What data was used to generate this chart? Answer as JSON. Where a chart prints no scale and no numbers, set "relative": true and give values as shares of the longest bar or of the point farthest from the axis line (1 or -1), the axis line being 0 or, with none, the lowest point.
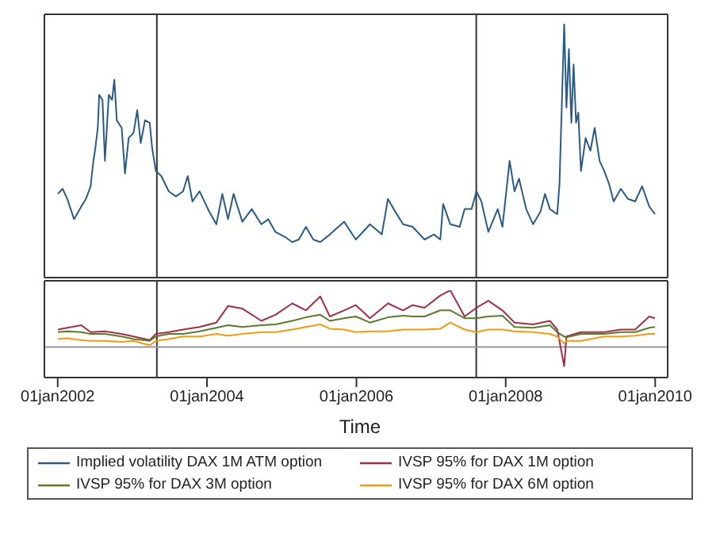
{
  "chart_data": [
    {
      "type": "line",
      "relative": true,
      "tick_labels": false,
      "legend": "bottom",
      "line_style": "solid",
      "marker": "none",
      "xlim": [
        "2001-10-28",
        "2010-03-03"
      ],
      "x": [
        "2002-01-02",
        "2002-01-25",
        "2002-02-17",
        "2002-03-22",
        "2002-04-26",
        "2002-05-19",
        "2002-06-11",
        "2002-06-23",
        "2002-07-04",
        "2002-07-16",
        "2002-07-23",
        "2002-08-08",
        "2002-08-20",
        "2002-09-08",
        "2002-09-24",
        "2002-10-05",
        "2002-10-17",
        "2002-11-10",
        "2002-11-26",
        "2002-12-14",
        "2003-01-07",
        "2003-01-25",
        "2003-02-11",
        "2003-03-04",
        "2003-03-27",
        "2003-04-08",
        "2003-04-26",
        "2003-05-23",
        "2003-06-28",
        "2003-08-02",
        "2003-09-06",
        "2003-09-29",
        "2003-10-22",
        "2003-11-26",
        "2004-01-12",
        "2004-02-16",
        "2004-03-16",
        "2004-04-13",
        "2004-05-10",
        "2004-06-22",
        "2004-08-07",
        "2004-09-23",
        "2004-10-27",
        "2004-12-01",
        "2005-01-17",
        "2005-02-21",
        "2005-03-25",
        "2005-04-29",
        "2005-06-04",
        "2005-07-08",
        "2005-08-24",
        "2005-11-02",
        "2005-12-29",
        "2006-03-08",
        "2006-05-05",
        "2006-06-04",
        "2006-07-02",
        "2006-08-17",
        "2006-10-03",
        "2006-11-30",
        "2007-01-15",
        "2007-02-15",
        "2007-03-01",
        "2007-04-05",
        "2007-05-21",
        "2007-06-14",
        "2007-07-18",
        "2007-08-11",
        "2007-09-04",
        "2007-10-08",
        "2007-11-23",
        "2007-12-16",
        "2008-01-20",
        "2008-02-13",
        "2008-03-06",
        "2008-04-10",
        "2008-05-14",
        "2008-06-19",
        "2008-07-11",
        "2008-08-04",
        "2008-09-09",
        "2008-09-20",
        "2008-10-13",
        "2008-10-24",
        "2008-11-05",
        "2008-11-17",
        "2008-11-28",
        "2008-12-10",
        "2008-12-21",
        "2009-01-03",
        "2009-01-26",
        "2009-02-18",
        "2009-03-11",
        "2009-04-04",
        "2009-04-27",
        "2009-05-20",
        "2009-06-12",
        "2009-07-17",
        "2009-08-21",
        "2009-09-25",
        "2009-10-29",
        "2009-12-03",
        "2009-12-31"
      ],
      "series": [
        {
          "name": "Implied volatility DAX 1M ATM option",
          "color": "#2b5b84",
          "values": [
            0.33,
            0.35,
            0.31,
            0.23,
            0.28,
            0.31,
            0.36,
            0.45,
            0.51,
            0.59,
            0.72,
            0.7,
            0.46,
            0.72,
            0.7,
            0.78,
            0.62,
            0.59,
            0.41,
            0.55,
            0.57,
            0.66,
            0.53,
            0.62,
            0.61,
            0.51,
            0.42,
            0.4,
            0.34,
            0.32,
            0.34,
            0.4,
            0.3,
            0.34,
            0.26,
            0.21,
            0.33,
            0.23,
            0.33,
            0.22,
            0.27,
            0.21,
            0.23,
            0.18,
            0.16,
            0.14,
            0.15,
            0.2,
            0.15,
            0.14,
            0.17,
            0.22,
            0.15,
            0.21,
            0.17,
            0.31,
            0.27,
            0.21,
            0.2,
            0.15,
            0.17,
            0.15,
            0.29,
            0.21,
            0.2,
            0.27,
            0.27,
            0.34,
            0.3,
            0.18,
            0.27,
            0.2,
            0.46,
            0.34,
            0.39,
            0.27,
            0.21,
            0.26,
            0.33,
            0.27,
            0.25,
            0.37,
            1.0,
            0.67,
            0.9,
            0.61,
            0.84,
            0.61,
            0.65,
            0.42,
            0.55,
            0.5,
            0.59,
            0.46,
            0.42,
            0.37,
            0.3,
            0.35,
            0.31,
            0.3,
            0.36,
            0.28,
            0.25
          ]
        }
      ],
      "ref_lines": [
        {
          "axis": "x",
          "value": "2003-05-01",
          "color": "#333333"
        },
        {
          "axis": "x",
          "value": "2007-08-10",
          "color": "#333333"
        }
      ]
    },
    {
      "type": "line",
      "relative": true,
      "tick_labels": "x",
      "legend": "bottom",
      "line_style": "solid",
      "marker": "none",
      "xlabel": "Time",
      "xlim": [
        "2001-10-28",
        "2010-03-03"
      ],
      "xticks": [
        {
          "value": "2002-01-01",
          "label": "01jan2002"
        },
        {
          "value": "2004-01-01",
          "label": "01jan2004"
        },
        {
          "value": "2006-01-01",
          "label": "01jan2006"
        },
        {
          "value": "2008-01-01",
          "label": "01jan2008"
        },
        {
          "value": "2010-01-01",
          "label": "01jan2010"
        }
      ],
      "x": [
        "2002-01-02",
        "2002-02-17",
        "2002-04-26",
        "2002-06-11",
        "2002-08-20",
        "2002-11-10",
        "2003-01-07",
        "2003-03-27",
        "2003-04-26",
        "2003-06-28",
        "2003-09-06",
        "2003-11-26",
        "2004-02-16",
        "2004-04-13",
        "2004-06-22",
        "2004-09-23",
        "2004-12-01",
        "2005-02-21",
        "2005-04-29",
        "2005-07-08",
        "2005-08-24",
        "2005-11-02",
        "2005-12-29",
        "2006-03-08",
        "2006-06-04",
        "2006-08-17",
        "2006-10-03",
        "2006-11-30",
        "2007-02-15",
        "2007-04-05",
        "2007-06-14",
        "2007-08-11",
        "2007-10-08",
        "2007-12-16",
        "2008-02-13",
        "2008-05-14",
        "2008-08-04",
        "2008-09-09",
        "2008-10-13",
        "2008-10-24",
        "2009-01-03",
        "2009-04-27",
        "2009-07-17",
        "2009-09-25",
        "2009-12-03",
        "2009-12-31"
      ],
      "series": [
        {
          "name": "IVSP 95% for DAX 1M option",
          "color": "#a0304a",
          "values": [
            0.55,
            0.57,
            0.6,
            0.52,
            0.53,
            0.5,
            0.47,
            0.43,
            0.5,
            0.52,
            0.55,
            0.58,
            0.63,
            0.82,
            0.79,
            0.65,
            0.72,
            0.85,
            0.77,
            0.93,
            0.7,
            0.77,
            0.83,
            0.68,
            0.85,
            0.77,
            0.83,
            0.8,
            0.94,
            1.0,
            0.7,
            0.8,
            0.88,
            0.77,
            0.63,
            0.61,
            0.65,
            0.55,
            0.13,
            0.47,
            0.52,
            0.52,
            0.55,
            0.55,
            0.7,
            0.68
          ]
        },
        {
          "name": "IVSP 95% for DAX 3M option",
          "color": "#5b7a2a",
          "values": [
            0.52,
            0.53,
            0.52,
            0.5,
            0.5,
            0.47,
            0.44,
            0.42,
            0.47,
            0.5,
            0.5,
            0.53,
            0.57,
            0.6,
            0.58,
            0.6,
            0.61,
            0.65,
            0.69,
            0.72,
            0.65,
            0.68,
            0.7,
            0.63,
            0.69,
            0.71,
            0.7,
            0.7,
            0.77,
            0.77,
            0.68,
            0.68,
            0.7,
            0.71,
            0.58,
            0.57,
            0.6,
            0.52,
            0.47,
            0.46,
            0.5,
            0.5,
            0.52,
            0.52,
            0.57,
            0.58
          ]
        },
        {
          "name": "IVSP 95% for DAX 6M option",
          "color": "#f29a12",
          "values": [
            0.44,
            0.45,
            0.43,
            0.42,
            0.42,
            0.41,
            0.42,
            0.37,
            0.42,
            0.44,
            0.47,
            0.47,
            0.5,
            0.48,
            0.5,
            0.52,
            0.52,
            0.55,
            0.58,
            0.61,
            0.56,
            0.55,
            0.52,
            0.53,
            0.53,
            0.55,
            0.55,
            0.55,
            0.56,
            0.63,
            0.55,
            0.52,
            0.55,
            0.55,
            0.53,
            0.52,
            0.5,
            0.47,
            0.39,
            0.42,
            0.42,
            0.47,
            0.47,
            0.48,
            0.5,
            0.5
          ]
        }
      ],
      "ref_lines": [
        {
          "axis": "x",
          "value": "2003-05-01",
          "color": "#333333"
        },
        {
          "axis": "x",
          "value": "2007-08-10",
          "color": "#333333"
        },
        {
          "axis": "y",
          "value": 0.35,
          "color": "#999999"
        }
      ]
    }
  ]
}
